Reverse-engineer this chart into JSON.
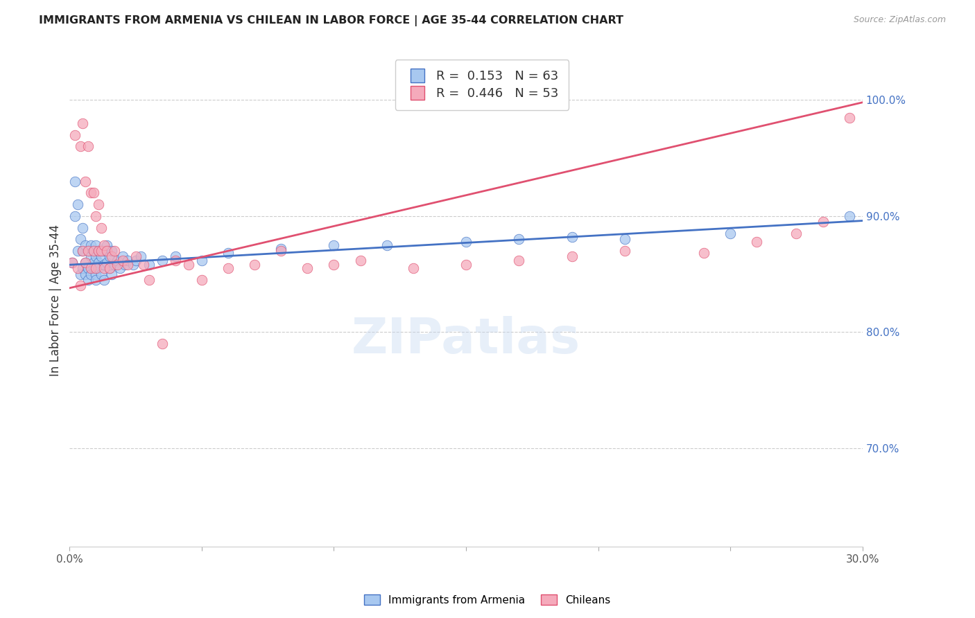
{
  "title": "IMMIGRANTS FROM ARMENIA VS CHILEAN IN LABOR FORCE | AGE 35-44 CORRELATION CHART",
  "source": "Source: ZipAtlas.com",
  "ylabel": "In Labor Force | Age 35-44",
  "r_armenia": 0.153,
  "n_armenia": 63,
  "r_chilean": 0.446,
  "n_chilean": 53,
  "xlim": [
    0.0,
    0.3
  ],
  "ylim": [
    0.615,
    1.04
  ],
  "yticks": [
    0.7,
    0.8,
    0.9,
    1.0
  ],
  "ytick_labels": [
    "70.0%",
    "80.0%",
    "90.0%",
    "100.0%"
  ],
  "xticks": [
    0.0,
    0.05,
    0.1,
    0.15,
    0.2,
    0.25,
    0.3
  ],
  "xtick_labels": [
    "0.0%",
    "",
    "",
    "",
    "",
    "",
    "30.0%"
  ],
  "color_armenia": "#A8C8F0",
  "color_chilean": "#F5AABB",
  "line_color_armenia": "#4472C4",
  "line_color_chilean": "#E05070",
  "background_color": "#FFFFFF",
  "armenia_x": [
    0.001,
    0.002,
    0.002,
    0.003,
    0.003,
    0.004,
    0.004,
    0.005,
    0.005,
    0.005,
    0.006,
    0.006,
    0.006,
    0.007,
    0.007,
    0.007,
    0.008,
    0.008,
    0.008,
    0.009,
    0.009,
    0.009,
    0.01,
    0.01,
    0.01,
    0.01,
    0.011,
    0.011,
    0.011,
    0.012,
    0.012,
    0.013,
    0.013,
    0.013,
    0.014,
    0.014,
    0.015,
    0.015,
    0.016,
    0.016,
    0.017,
    0.018,
    0.019,
    0.02,
    0.021,
    0.022,
    0.024,
    0.025,
    0.027,
    0.03,
    0.035,
    0.04,
    0.05,
    0.06,
    0.08,
    0.1,
    0.12,
    0.15,
    0.17,
    0.19,
    0.21,
    0.25,
    0.295
  ],
  "armenia_y": [
    0.86,
    0.9,
    0.93,
    0.87,
    0.91,
    0.88,
    0.85,
    0.87,
    0.89,
    0.855,
    0.86,
    0.875,
    0.85,
    0.87,
    0.855,
    0.845,
    0.865,
    0.875,
    0.85,
    0.86,
    0.87,
    0.855,
    0.85,
    0.865,
    0.875,
    0.845,
    0.86,
    0.87,
    0.855,
    0.85,
    0.865,
    0.858,
    0.87,
    0.845,
    0.86,
    0.875,
    0.855,
    0.865,
    0.85,
    0.87,
    0.858,
    0.862,
    0.855,
    0.865,
    0.858,
    0.862,
    0.858,
    0.862,
    0.865,
    0.858,
    0.862,
    0.865,
    0.862,
    0.868,
    0.872,
    0.875,
    0.875,
    0.878,
    0.88,
    0.882,
    0.88,
    0.885,
    0.9
  ],
  "chilean_x": [
    0.001,
    0.002,
    0.003,
    0.004,
    0.004,
    0.005,
    0.005,
    0.006,
    0.006,
    0.007,
    0.007,
    0.008,
    0.008,
    0.009,
    0.009,
    0.01,
    0.01,
    0.011,
    0.011,
    0.012,
    0.012,
    0.013,
    0.013,
    0.014,
    0.015,
    0.016,
    0.017,
    0.018,
    0.02,
    0.022,
    0.025,
    0.028,
    0.03,
    0.035,
    0.04,
    0.045,
    0.05,
    0.06,
    0.07,
    0.08,
    0.09,
    0.1,
    0.11,
    0.13,
    0.15,
    0.17,
    0.19,
    0.21,
    0.24,
    0.26,
    0.275,
    0.285,
    0.295
  ],
  "chilean_y": [
    0.86,
    0.97,
    0.855,
    0.96,
    0.84,
    0.98,
    0.87,
    0.93,
    0.86,
    0.96,
    0.87,
    0.92,
    0.855,
    0.92,
    0.87,
    0.9,
    0.855,
    0.91,
    0.87,
    0.89,
    0.87,
    0.875,
    0.855,
    0.87,
    0.855,
    0.865,
    0.87,
    0.858,
    0.862,
    0.858,
    0.865,
    0.858,
    0.845,
    0.79,
    0.862,
    0.858,
    0.845,
    0.855,
    0.858,
    0.87,
    0.855,
    0.858,
    0.862,
    0.855,
    0.858,
    0.862,
    0.865,
    0.87,
    0.868,
    0.878,
    0.885,
    0.895,
    0.985
  ],
  "trend_armenia": [
    0.858,
    0.896
  ],
  "trend_chilean": [
    0.838,
    0.998
  ]
}
